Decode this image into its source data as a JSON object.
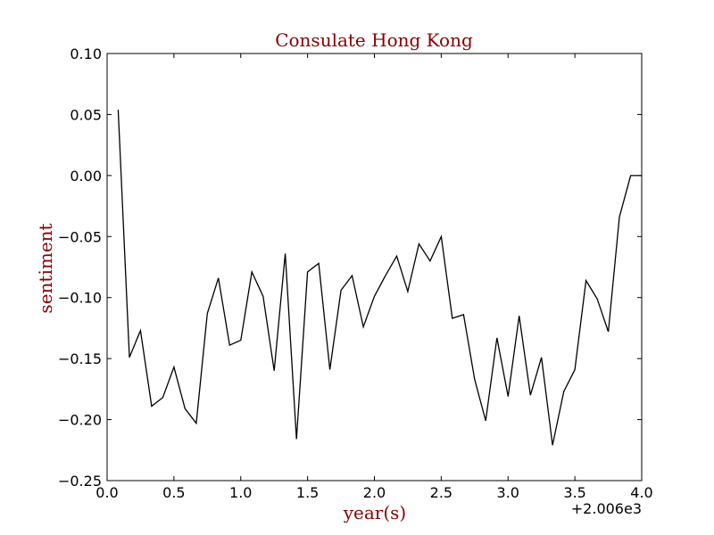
{
  "chart_data": {
    "type": "line",
    "title": "Consulate Hong Kong",
    "xlabel": "year(s)",
    "ylabel": "sentiment",
    "x_offset_label": "+2.006e3",
    "xlim": [
      0.0,
      4.0
    ],
    "ylim": [
      -0.25,
      0.1
    ],
    "x_tick_labels": [
      "0.0",
      "0.5",
      "1.0",
      "1.5",
      "2.0",
      "2.5",
      "3.0",
      "3.5",
      "4.0"
    ],
    "y_tick_labels": [
      "0.10",
      "0.05",
      "0.00",
      "−0.05",
      "−0.10",
      "−0.15",
      "−0.20",
      "−0.25"
    ],
    "grid": false,
    "legend": "none",
    "colors": {
      "title": "#8b0000",
      "axis_label": "#8b0000",
      "line": "#000000"
    },
    "series": [
      {
        "x": [
          0.083,
          0.167,
          0.25,
          0.333,
          0.417,
          0.5,
          0.583,
          0.667,
          0.75,
          0.833,
          0.917,
          1.0,
          1.083,
          1.167,
          1.25,
          1.333,
          1.417,
          1.5,
          1.583,
          1.667,
          1.75,
          1.833,
          1.917,
          2.0,
          2.083,
          2.167,
          2.25,
          2.333,
          2.417,
          2.5,
          2.583,
          2.667,
          2.75,
          2.833,
          2.917,
          3.0,
          3.083,
          3.167,
          3.25,
          3.333,
          3.417,
          3.5,
          3.583,
          3.667,
          3.75,
          3.833,
          3.917,
          4.0
        ],
        "values": [
          0.054,
          -0.149,
          -0.127,
          -0.189,
          -0.182,
          -0.157,
          -0.191,
          -0.203,
          -0.113,
          -0.084,
          -0.139,
          -0.135,
          -0.079,
          -0.099,
          -0.16,
          -0.064,
          -0.216,
          -0.079,
          -0.072,
          -0.159,
          -0.094,
          -0.082,
          -0.124,
          -0.099,
          -0.082,
          -0.066,
          -0.095,
          -0.056,
          -0.07,
          -0.05,
          -0.117,
          -0.114,
          -0.167,
          -0.201,
          -0.133,
          -0.181,
          -0.115,
          -0.18,
          -0.149,
          -0.221,
          -0.177,
          -0.159,
          -0.086,
          -0.101,
          -0.128,
          -0.034,
          0.0,
          0.0
        ]
      }
    ]
  }
}
